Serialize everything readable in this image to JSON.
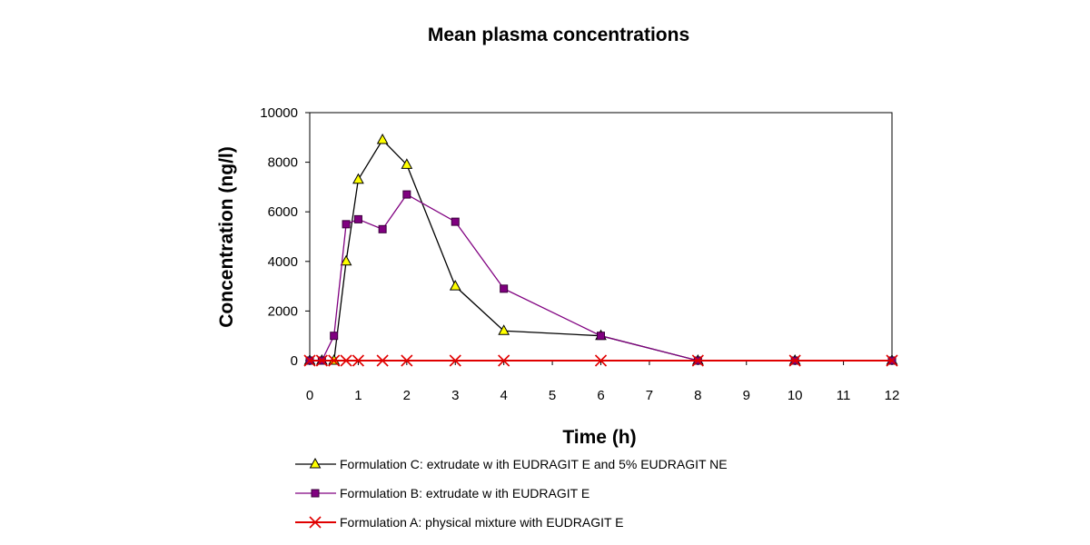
{
  "chart_data": {
    "type": "line",
    "title": "Mean plasma concentrations",
    "xlabel": "Time (h)",
    "ylabel": "Concentration (ng/l)",
    "xlim": [
      0,
      12
    ],
    "ylim": [
      0,
      10000
    ],
    "x_ticks": [
      "0",
      "1",
      "2",
      "3",
      "4",
      "5",
      "6",
      "7",
      "8",
      "9",
      "10",
      "11",
      "12"
    ],
    "y_ticks": [
      "0",
      "2000",
      "4000",
      "6000",
      "8000",
      "10000"
    ],
    "series": [
      {
        "name": "Formulation C: extrudate w ith EUDRAGIT E and  5% EUDRAGIT NE",
        "color": "#000000",
        "marker": "triangle",
        "marker_fill": "#ffff00",
        "x": [
          0,
          0.25,
          0.5,
          0.75,
          1,
          1.5,
          2,
          3,
          4,
          6,
          8,
          10,
          12
        ],
        "y": [
          0,
          0,
          0,
          4000,
          7300,
          8900,
          7900,
          3000,
          1200,
          1000,
          0,
          0,
          0
        ]
      },
      {
        "name": "Formulation B: extrudate w ith EUDRAGIT E",
        "color": "#800080",
        "marker": "square",
        "marker_fill": "#800080",
        "x": [
          0,
          0.25,
          0.5,
          0.75,
          1,
          1.5,
          2,
          3,
          4,
          6,
          8,
          10,
          12
        ],
        "y": [
          0,
          0,
          1000,
          5500,
          5700,
          5300,
          6700,
          5600,
          2900,
          1000,
          0,
          0,
          0
        ]
      },
      {
        "name": "Formulation A: physical mixture with EUDRAGIT E",
        "color": "#e00000",
        "marker": "x",
        "marker_fill": "#e00000",
        "x": [
          0,
          0.25,
          0.5,
          0.75,
          1,
          1.5,
          2,
          3,
          4,
          6,
          8,
          10,
          12
        ],
        "y": [
          0,
          0,
          0,
          0,
          0,
          0,
          0,
          0,
          0,
          0,
          0,
          0,
          0
        ]
      }
    ],
    "legend_position": "bottom"
  }
}
